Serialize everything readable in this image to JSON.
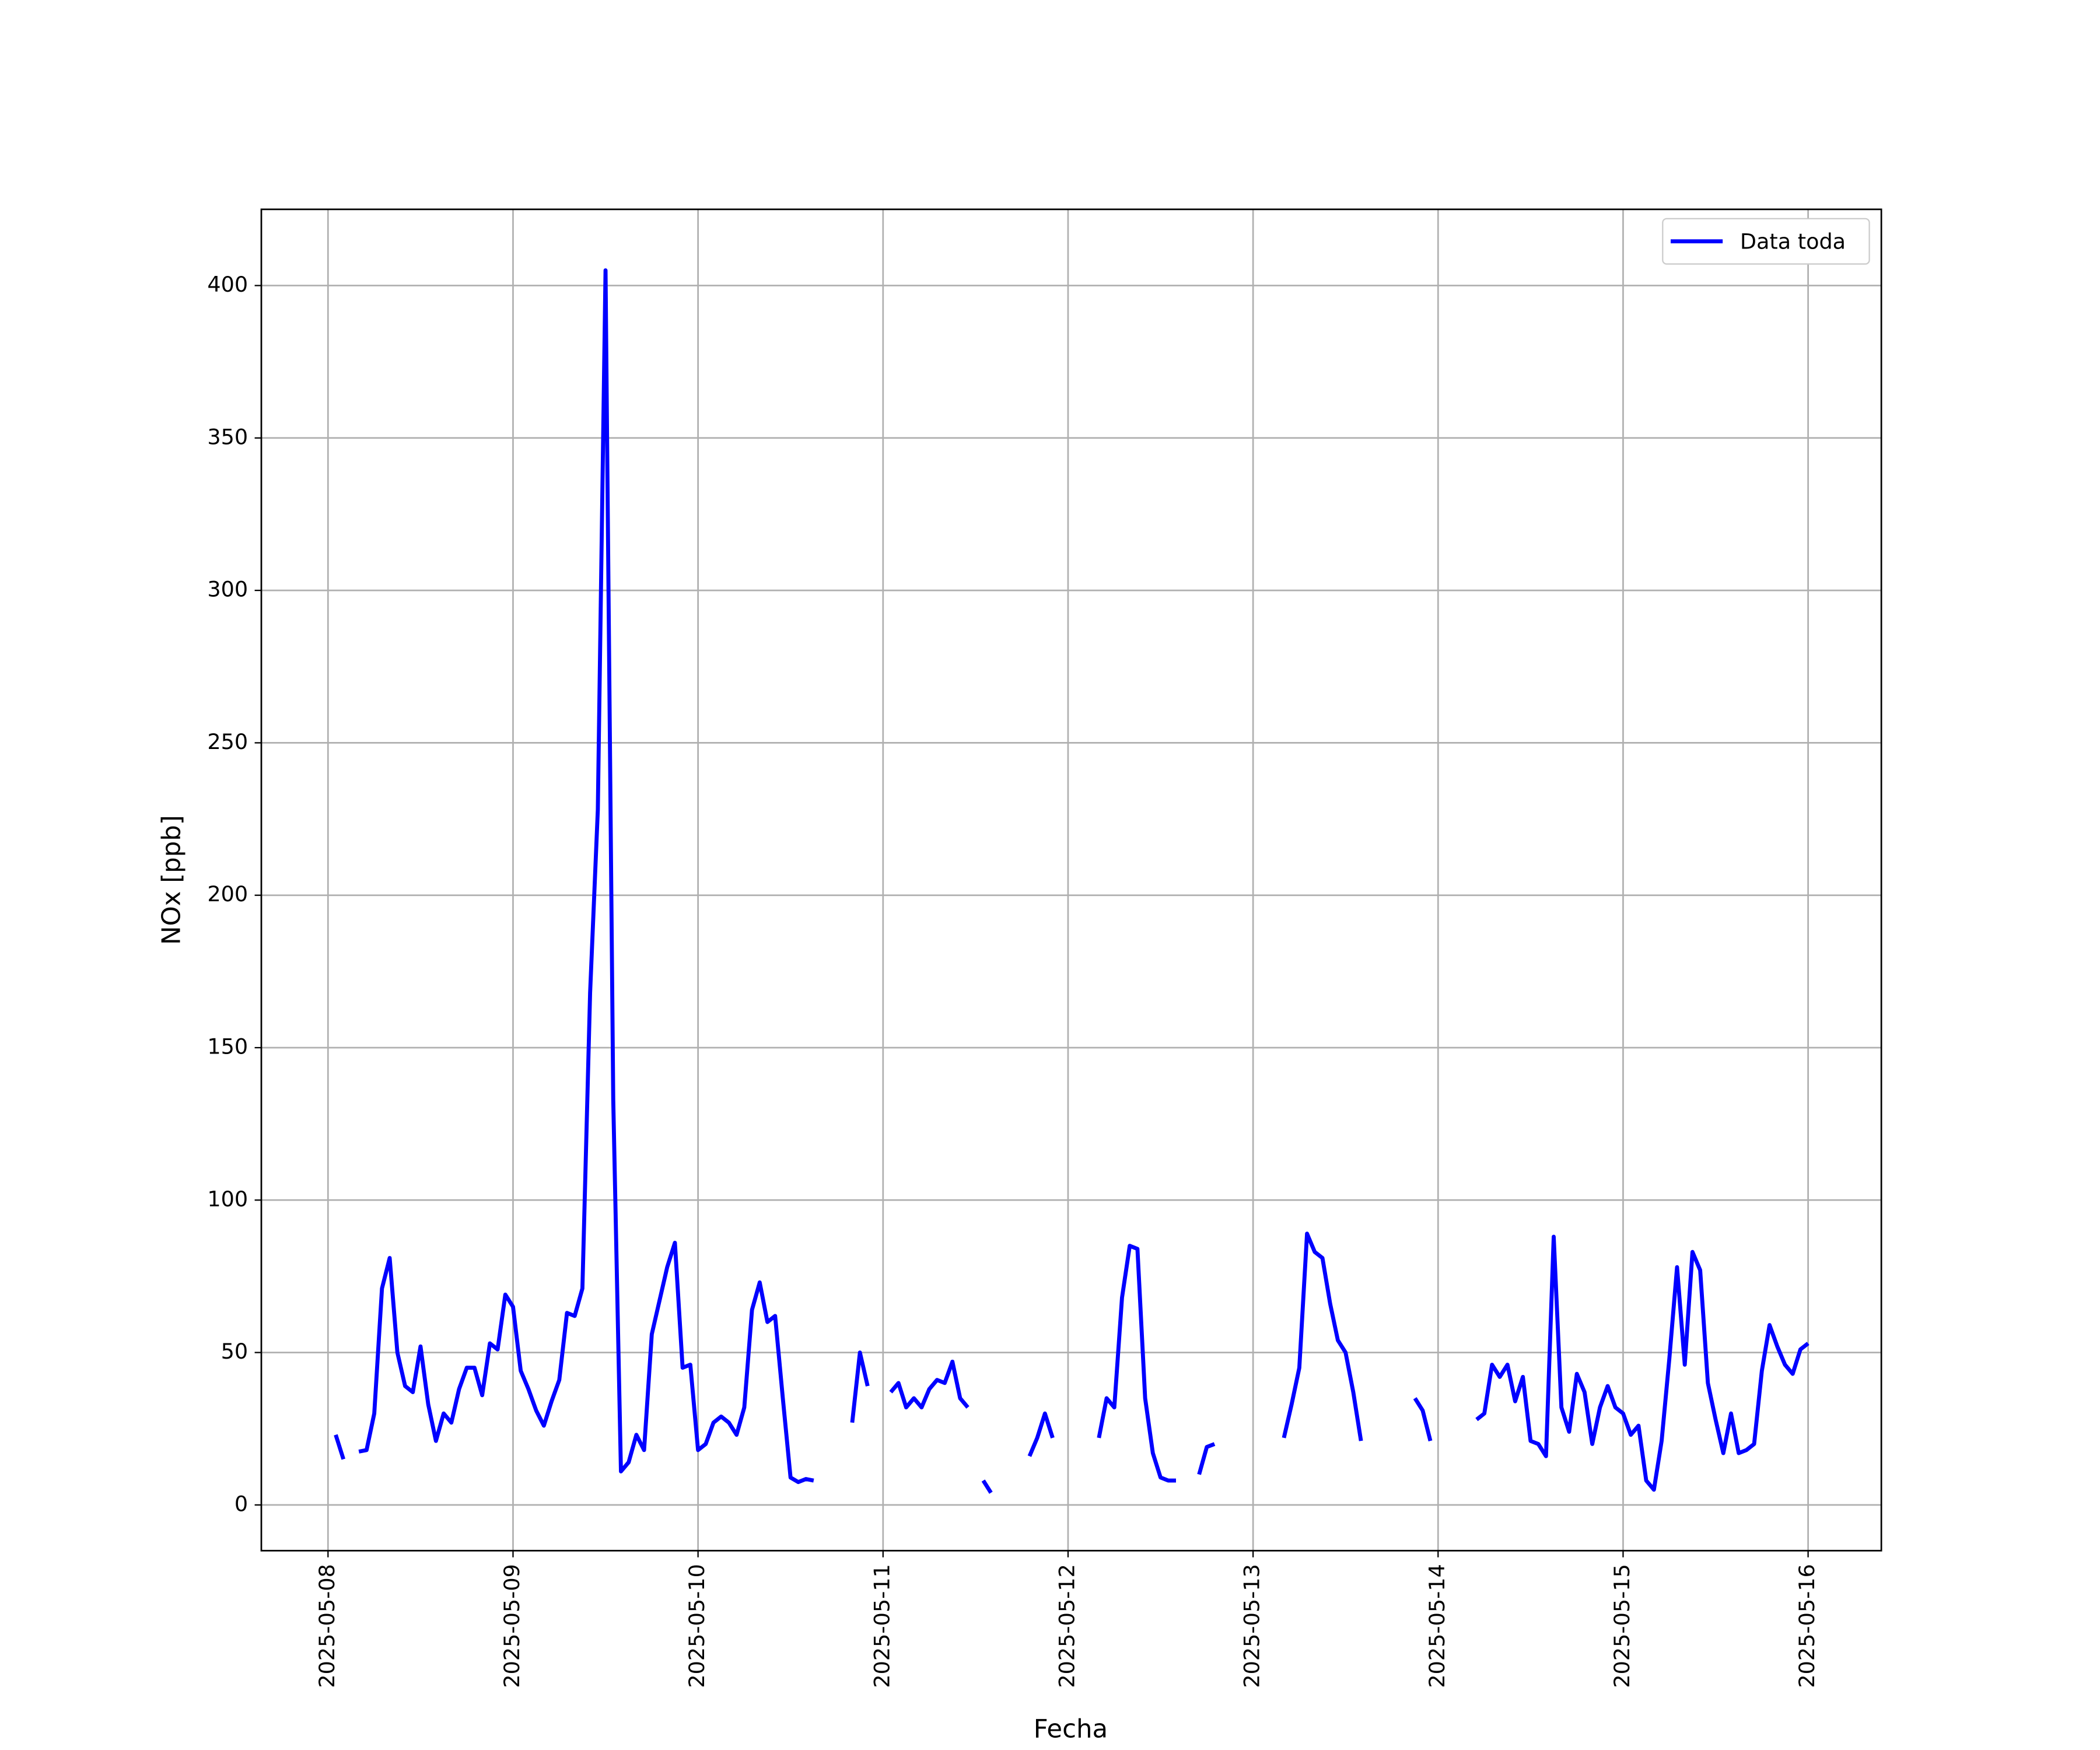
{
  "chart_data": {
    "type": "line",
    "xlabel": "Fecha",
    "ylabel": "NOx [ppb]",
    "x": [
      "2025-05-08 01:00",
      "2025-05-08 02:00",
      "2025-05-08 03:00",
      "2025-05-08 04:00",
      "2025-05-08 05:00",
      "2025-05-08 06:00",
      "2025-05-08 07:00",
      "2025-05-08 08:00",
      "2025-05-08 09:00",
      "2025-05-08 10:00",
      "2025-05-08 11:00",
      "2025-05-08 12:00",
      "2025-05-08 13:00",
      "2025-05-08 14:00",
      "2025-05-08 15:00",
      "2025-05-08 16:00",
      "2025-05-08 17:00",
      "2025-05-08 18:00",
      "2025-05-08 19:00",
      "2025-05-08 20:00",
      "2025-05-08 21:00",
      "2025-05-08 22:00",
      "2025-05-08 23:00",
      "2025-05-09 00:00",
      "2025-05-09 01:00",
      "2025-05-09 02:00",
      "2025-05-09 03:00",
      "2025-05-09 04:00",
      "2025-05-09 05:00",
      "2025-05-09 06:00",
      "2025-05-09 07:00",
      "2025-05-09 08:00",
      "2025-05-09 09:00",
      "2025-05-09 10:00",
      "2025-05-09 11:00",
      "2025-05-09 12:00",
      "2025-05-09 13:00",
      "2025-05-09 14:00",
      "2025-05-09 15:00",
      "2025-05-09 16:00",
      "2025-05-09 17:00",
      "2025-05-09 18:00",
      "2025-05-09 19:00",
      "2025-05-09 20:00",
      "2025-05-09 21:00",
      "2025-05-09 22:00",
      "2025-05-09 23:00",
      "2025-05-10 00:00",
      "2025-05-10 01:00",
      "2025-05-10 02:00",
      "2025-05-10 03:00",
      "2025-05-10 04:00",
      "2025-05-10 05:00",
      "2025-05-10 06:00",
      "2025-05-10 07:00",
      "2025-05-10 08:00",
      "2025-05-10 09:00",
      "2025-05-10 10:00",
      "2025-05-10 11:00",
      "2025-05-10 12:00",
      "2025-05-10 13:00",
      "2025-05-10 14:00",
      "2025-05-10 15:00",
      "2025-05-10 16:00",
      "2025-05-10 20:00",
      "2025-05-10 21:00",
      "2025-05-10 22:00",
      "2025-05-10 23:00",
      "2025-05-11 01:00",
      "2025-05-11 02:00",
      "2025-05-11 03:00",
      "2025-05-11 04:00",
      "2025-05-11 05:00",
      "2025-05-11 06:00",
      "2025-05-11 07:00",
      "2025-05-11 08:00",
      "2025-05-11 09:00",
      "2025-05-11 10:00",
      "2025-05-11 11:00",
      "2025-05-11 12:00",
      "2025-05-11 13:00",
      "2025-05-11 14:00",
      "2025-05-11 15:00",
      "2025-05-11 19:00",
      "2025-05-11 20:00",
      "2025-05-11 21:00",
      "2025-05-11 22:00",
      "2025-05-11 23:00",
      "2025-05-12 04:00",
      "2025-05-12 05:00",
      "2025-05-12 06:00",
      "2025-05-12 07:00",
      "2025-05-12 08:00",
      "2025-05-12 09:00",
      "2025-05-12 10:00",
      "2025-05-12 11:00",
      "2025-05-12 12:00",
      "2025-05-12 13:00",
      "2025-05-12 14:00",
      "2025-05-12 15:00",
      "2025-05-12 17:00",
      "2025-05-12 18:00",
      "2025-05-12 19:00",
      "2025-05-12 20:00",
      "2025-05-13 04:00",
      "2025-05-13 05:00",
      "2025-05-13 06:00",
      "2025-05-13 07:00",
      "2025-05-13 08:00",
      "2025-05-13 09:00",
      "2025-05-13 10:00",
      "2025-05-13 11:00",
      "2025-05-13 12:00",
      "2025-05-13 13:00",
      "2025-05-13 14:00",
      "2025-05-13 15:00",
      "2025-05-13 21:00",
      "2025-05-13 22:00",
      "2025-05-13 23:00",
      "2025-05-14 00:00",
      "2025-05-14 05:00",
      "2025-05-14 06:00",
      "2025-05-14 07:00",
      "2025-05-14 08:00",
      "2025-05-14 09:00",
      "2025-05-14 10:00",
      "2025-05-14 11:00",
      "2025-05-14 12:00",
      "2025-05-14 13:00",
      "2025-05-14 14:00",
      "2025-05-14 15:00",
      "2025-05-14 16:00",
      "2025-05-14 17:00",
      "2025-05-14 18:00",
      "2025-05-14 19:00",
      "2025-05-14 20:00",
      "2025-05-14 21:00",
      "2025-05-14 22:00",
      "2025-05-14 23:00",
      "2025-05-15 00:00",
      "2025-05-15 01:00",
      "2025-05-15 02:00",
      "2025-05-15 03:00",
      "2025-05-15 04:00",
      "2025-05-15 05:00",
      "2025-05-15 06:00",
      "2025-05-15 07:00",
      "2025-05-15 08:00",
      "2025-05-15 09:00",
      "2025-05-15 10:00",
      "2025-05-15 11:00",
      "2025-05-15 12:00",
      "2025-05-15 13:00",
      "2025-05-15 14:00",
      "2025-05-15 15:00",
      "2025-05-15 16:00",
      "2025-05-15 17:00",
      "2025-05-15 18:00",
      "2025-05-15 19:00",
      "2025-05-15 20:00",
      "2025-05-15 21:00",
      "2025-05-15 22:00",
      "2025-05-15 23:00",
      "2025-05-16 00:00"
    ],
    "series": [
      {
        "name": "Data toda",
        "color": "#0000ff",
        "values": [
          23,
          15,
          null,
          17.5,
          18,
          30,
          71,
          81,
          50,
          39,
          37,
          52,
          33,
          21,
          30,
          27,
          38,
          45,
          45,
          36,
          53,
          51,
          69,
          65,
          44,
          38,
          31,
          26,
          34,
          41,
          63,
          62,
          71,
          168,
          228,
          405,
          133,
          11,
          14,
          23,
          18,
          56,
          67,
          78,
          86,
          45,
          46,
          18,
          20,
          27,
          29,
          27,
          23,
          32,
          64,
          73,
          60,
          62,
          35,
          9,
          7.5,
          8.5,
          8,
          null,
          27,
          50,
          39,
          null,
          37,
          40,
          32,
          35,
          32,
          38,
          41,
          40,
          47,
          35,
          32,
          null,
          8,
          4,
          null,
          16,
          22,
          30,
          22,
          null,
          22,
          35,
          32,
          68,
          85,
          84,
          35,
          17,
          9,
          8,
          8,
          null,
          10,
          19,
          20,
          null,
          22,
          33,
          45,
          89,
          83,
          81,
          66,
          54,
          50,
          37,
          21,
          null,
          35,
          31,
          21,
          null,
          28,
          30,
          46,
          42,
          46,
          34,
          42,
          21,
          20,
          16,
          88,
          32,
          24,
          43,
          37,
          20,
          32,
          39,
          32,
          30,
          23,
          26,
          8,
          5,
          21,
          48,
          78,
          46,
          83,
          77,
          40,
          28,
          17,
          30,
          17,
          18,
          20,
          44,
          59,
          52,
          46,
          43,
          51,
          53
        ]
      }
    ],
    "xlim": [
      "2025-05-07 15:21",
      "2025-05-16 09:30"
    ],
    "xticks": [
      "2025-05-08",
      "2025-05-09",
      "2025-05-10",
      "2025-05-11",
      "2025-05-12",
      "2025-05-13",
      "2025-05-14",
      "2025-05-15",
      "2025-05-16"
    ],
    "ylim": [
      -15,
      425
    ],
    "yticks": [
      0,
      50,
      100,
      150,
      200,
      250,
      300,
      350,
      400
    ],
    "grid": true,
    "legend": "upper right"
  }
}
